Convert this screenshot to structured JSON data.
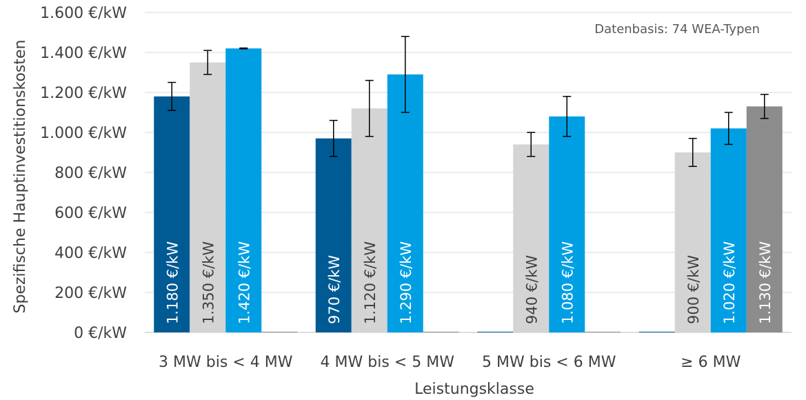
{
  "chart_data": {
    "type": "bar",
    "xlabel": "Leistungsklasse",
    "ylabel": "Spezifische Hauptinvestitionskosten",
    "ylim": [
      0,
      1600
    ],
    "ytick_values": [
      0,
      200,
      400,
      600,
      800,
      1000,
      1200,
      1400,
      1600
    ],
    "ytick_labels": [
      "0 €/kW",
      "200 €/kW",
      "400 €/kW",
      "600 €/kW",
      "800 €/kW",
      "1.000 €/kW",
      "1.200 €/kW",
      "1.400 €/kW",
      "1.600 €/kW"
    ],
    "annotation": "Datenbasis: 74 WEA-Typen",
    "grid": "horizontal",
    "categories": [
      "3 MW bis  < 4 MW",
      "4 MW bis  < 5 MW",
      "5 MW bis  < 6 MW",
      "≥ 6 MW"
    ],
    "series": [
      {
        "color": "#005A94",
        "values": [
          1180,
          970,
          0,
          0
        ],
        "labels": [
          "1.180 €/kW",
          "970 €/kW",
          "",
          ""
        ],
        "err_low": [
          1110,
          880,
          null,
          null
        ],
        "err_high": [
          1250,
          1060,
          null,
          null
        ]
      },
      {
        "color": "#D4D4D4",
        "values": [
          1350,
          1120,
          940,
          900
        ],
        "labels": [
          "1.350 €/kW",
          "1.120 €/kW",
          "940 €/kW",
          "900 €/kW"
        ],
        "err_low": [
          1290,
          980,
          880,
          830
        ],
        "err_high": [
          1410,
          1260,
          1000,
          970
        ]
      },
      {
        "color": "#009FE3",
        "values": [
          1420,
          1290,
          1080,
          1020
        ],
        "labels": [
          "1.420 €/kW",
          "1.290 €/kW",
          "1.080 €/kW",
          "1.020 €/kW"
        ],
        "err_low": [
          1418,
          1100,
          980,
          940
        ],
        "err_high": [
          1422,
          1480,
          1180,
          1100
        ]
      },
      {
        "color": "#8C8C8C",
        "values": [
          0,
          0,
          0,
          1130
        ],
        "labels": [
          "",
          "",
          "",
          "1.130 €/kW"
        ],
        "err_low": [
          null,
          null,
          null,
          1070
        ],
        "err_high": [
          null,
          null,
          null,
          1190
        ]
      }
    ]
  }
}
